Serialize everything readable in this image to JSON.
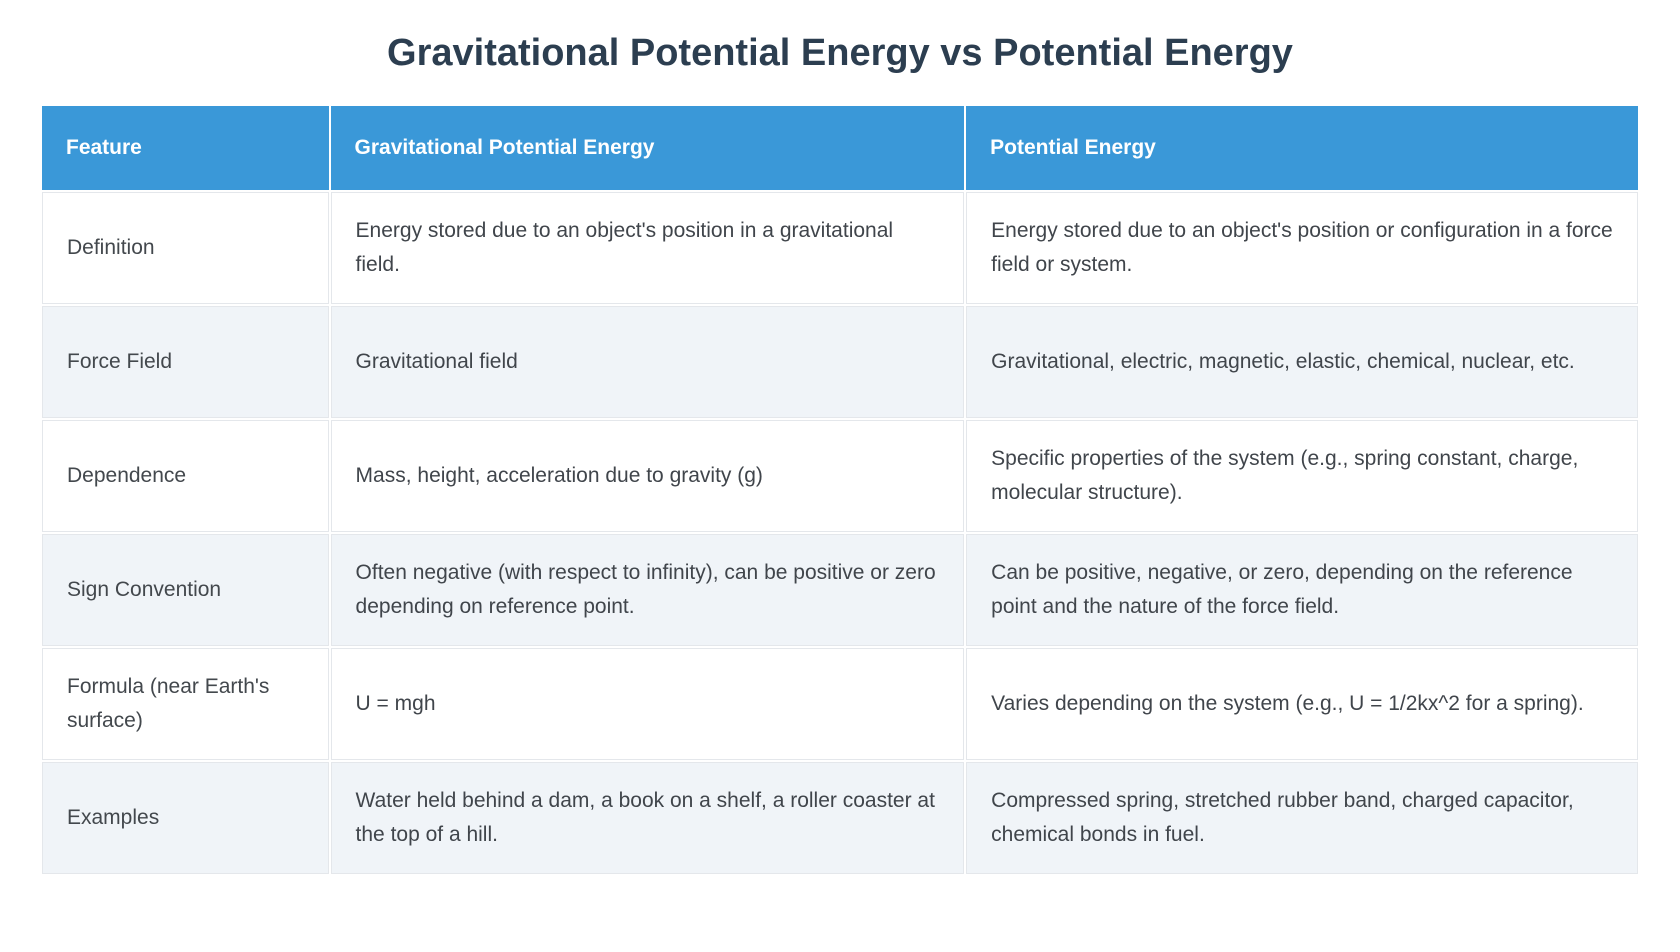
{
  "page": {
    "title": "Gravitational Potential Energy vs Potential Energy"
  },
  "table": {
    "columns": [
      "Feature",
      "Gravitational Potential Energy",
      "Potential Energy"
    ],
    "rows": [
      {
        "feature": "Definition",
        "gpe": "Energy stored due to an object's position in a gravitational field.",
        "pe": "Energy stored due to an object's position or configuration in a force field or system."
      },
      {
        "feature": "Force Field",
        "gpe": "Gravitational field",
        "pe": "Gravitational, electric, magnetic, elastic, chemical, nuclear, etc."
      },
      {
        "feature": "Dependence",
        "gpe": "Mass, height, acceleration due to gravity (g)",
        "pe": "Specific properties of the system (e.g., spring constant, charge, molecular structure)."
      },
      {
        "feature": "Sign Convention",
        "gpe": "Often negative (with respect to infinity), can be positive or zero depending on reference point.",
        "pe": "Can be positive, negative, or zero, depending on the reference point and the nature of the force field."
      },
      {
        "feature": "Formula (near Earth's surface)",
        "gpe": "U = mgh",
        "pe": "Varies depending on the system (e.g., U = 1/2kx^2 for a spring)."
      },
      {
        "feature": "Examples",
        "gpe": "Water held behind a dam, a book on a shelf, a roller coaster at the top of a hill.",
        "pe": "Compressed spring, stretched rubber band, charged capacitor, chemical bonds in fuel."
      }
    ]
  },
  "colors": {
    "header_bg": "#3a98d8",
    "header_text": "#ffffff",
    "row_bg": "#ffffff",
    "row_alt_bg": "#f0f4f8",
    "title_text": "#2c3e50",
    "body_text": "#40454b",
    "border": "#e4e7eb"
  }
}
